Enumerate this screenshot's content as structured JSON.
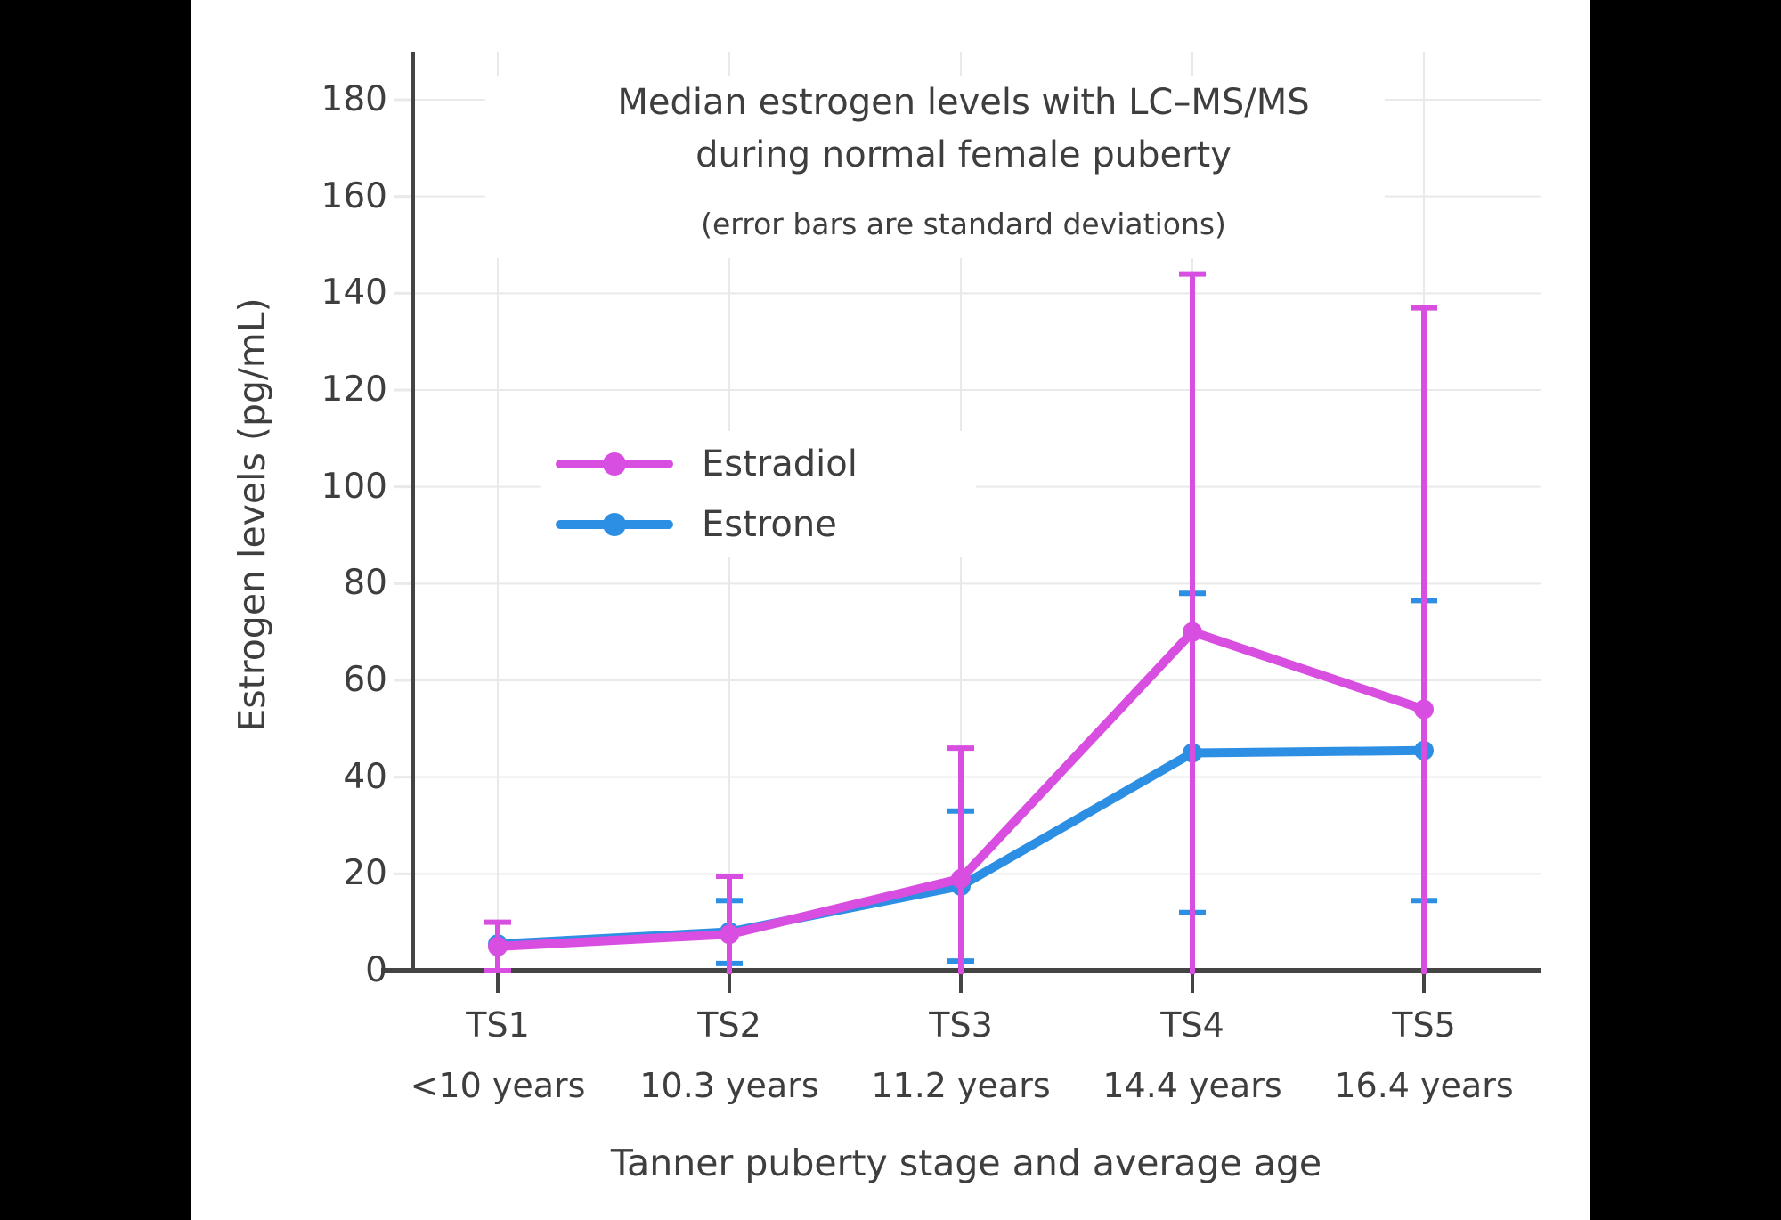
{
  "title": {
    "line1": "Median estrogen levels with LC–MS/MS",
    "line2": "during normal female puberty",
    "subtitle": "(error bars are standard deviations)"
  },
  "axes": {
    "y_title": "Estrogen levels (pg/mL)",
    "x_title": "Tanner puberty stage and average age",
    "y_ticks": [
      "0",
      "20",
      "40",
      "60",
      "80",
      "100",
      "120",
      "140",
      "160",
      "180"
    ]
  },
  "legend": {
    "items": [
      {
        "label": "Estradiol",
        "color": "#d84ee0"
      },
      {
        "label": "Estrone",
        "color": "#2d8fe4"
      }
    ]
  },
  "colors": {
    "frame": "#000000",
    "background": "#ffffff",
    "grid": "#e9e9e9",
    "axis": "#444444",
    "text": "#3e3e3e",
    "estradiol": "#d84ee0",
    "estrone": "#2d8fe4"
  },
  "chart_data": {
    "type": "line",
    "title": "Median estrogen levels with LC–MS/MS during normal female puberty",
    "subtitle": "(error bars are standard deviations)",
    "xlabel": "Tanner puberty stage and average age",
    "ylabel": "Estrogen levels (pg/mL)",
    "categories": [
      "TS1",
      "TS2",
      "TS3",
      "TS4",
      "TS5"
    ],
    "category_ages": [
      "<10 years",
      "10.3 years",
      "11.2 years",
      "14.4 years",
      "16.4 years"
    ],
    "ylim": [
      0,
      190
    ],
    "ytick_step": 20,
    "grid": true,
    "legend_position": "inside upper-left",
    "error_bar_meaning": "standard deviation, clipped at y=0",
    "series": [
      {
        "name": "Estradiol",
        "color": "#d84ee0",
        "marker": "circle",
        "values": [
          5,
          7.5,
          19,
          70,
          54
        ],
        "sd": [
          5,
          12,
          27,
          74,
          83
        ]
      },
      {
        "name": "Estrone",
        "color": "#2d8fe4",
        "marker": "circle",
        "values": [
          5.5,
          8,
          17.5,
          45,
          45.5
        ],
        "sd": [
          null,
          6.5,
          15.5,
          33,
          31
        ]
      }
    ]
  }
}
